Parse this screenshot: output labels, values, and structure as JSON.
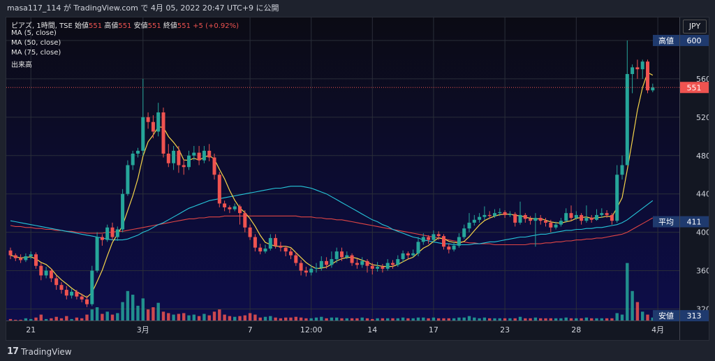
{
  "header": {
    "text": "masa117_114 が TradingView.com で 4月 05, 2022 20:47 UTC+9 に公開"
  },
  "legend": {
    "symbol": "ピアズ, 1時間, TSE",
    "open_label": "始値",
    "open": "551",
    "high_label": "高値",
    "high": "551",
    "low_label": "安値",
    "low": "551",
    "close_label": "終値",
    "close": "551",
    "change": "+5 (+0.92%)",
    "ma5": "MA (5, close)",
    "ma50": "MA (50, close)",
    "ma75": "MA (75, close)",
    "volume": "出来高"
  },
  "currency": "JPY",
  "footer": {
    "brand": "TradingView",
    "brand_mark": "17"
  },
  "colors": {
    "up": "#26a69a",
    "down": "#ef5350",
    "ma5": "#f5d44a",
    "ma50": "#26c6da",
    "ma75": "#e04545",
    "label_bg": "#1f3a6e",
    "price_line": "#ef5350"
  },
  "chart_data": {
    "type": "candlestick",
    "y_ticks": [
      600,
      560,
      520,
      480,
      440,
      400,
      360,
      320
    ],
    "ylim": [
      308,
      624
    ],
    "x_ticks": [
      {
        "label": "21",
        "idx": 4
      },
      {
        "label": "3月",
        "idx": 26
      },
      {
        "label": "7",
        "idx": 47
      },
      {
        "label": "12:00",
        "idx": 59
      },
      {
        "label": "14",
        "idx": 71
      },
      {
        "label": "17",
        "idx": 83
      },
      {
        "label": "23",
        "idx": 97
      },
      {
        "label": "28",
        "idx": 111
      },
      {
        "label": "4月",
        "idx": 127
      }
    ],
    "price_labels": [
      {
        "text": "高値",
        "value": "600"
      },
      {
        "text": "平均",
        "value": "411"
      },
      {
        "text": "安値",
        "value": "313"
      }
    ],
    "current_price": "551",
    "candles": [
      [
        381,
        376,
        384,
        372
      ],
      [
        376,
        373,
        378,
        370
      ],
      [
        373,
        371,
        377,
        368
      ],
      [
        371,
        375,
        378,
        369
      ],
      [
        375,
        377,
        380,
        372
      ],
      [
        377,
        365,
        379,
        362
      ],
      [
        365,
        355,
        368,
        350
      ],
      [
        355,
        360,
        364,
        352
      ],
      [
        360,
        352,
        362,
        348
      ],
      [
        352,
        345,
        355,
        340
      ],
      [
        345,
        340,
        348,
        336
      ],
      [
        340,
        334,
        344,
        330
      ],
      [
        334,
        338,
        341,
        331
      ],
      [
        338,
        333,
        340,
        330
      ],
      [
        333,
        330,
        336,
        327
      ],
      [
        330,
        325,
        334,
        322
      ],
      [
        325,
        360,
        365,
        323
      ],
      [
        360,
        395,
        400,
        358
      ],
      [
        395,
        392,
        398,
        386
      ],
      [
        392,
        405,
        408,
        390
      ],
      [
        405,
        395,
        410,
        392
      ],
      [
        395,
        403,
        406,
        391
      ],
      [
        403,
        440,
        445,
        400
      ],
      [
        440,
        470,
        475,
        438
      ],
      [
        470,
        482,
        485,
        465
      ],
      [
        482,
        485,
        488,
        478
      ],
      [
        485,
        520,
        560,
        480
      ],
      [
        520,
        515,
        525,
        508
      ],
      [
        515,
        505,
        522,
        498
      ],
      [
        505,
        525,
        535,
        500
      ],
      [
        525,
        482,
        530,
        478
      ],
      [
        482,
        472,
        492,
        468
      ],
      [
        472,
        485,
        490,
        465
      ],
      [
        485,
        470,
        490,
        462
      ],
      [
        470,
        468,
        476,
        460
      ],
      [
        468,
        480,
        485,
        465
      ],
      [
        480,
        483,
        490,
        475
      ],
      [
        483,
        475,
        490,
        470
      ],
      [
        475,
        485,
        490,
        472
      ],
      [
        485,
        478,
        492,
        474
      ],
      [
        478,
        460,
        482,
        455
      ],
      [
        460,
        430,
        463,
        426
      ],
      [
        430,
        426,
        433,
        422
      ],
      [
        426,
        424,
        428,
        420
      ],
      [
        424,
        427,
        430,
        422
      ],
      [
        427,
        420,
        429,
        408
      ],
      [
        420,
        405,
        423,
        400
      ],
      [
        405,
        395,
        408,
        392
      ],
      [
        395,
        384,
        398,
        380
      ],
      [
        384,
        380,
        388,
        377
      ],
      [
        380,
        383,
        387,
        378
      ],
      [
        383,
        394,
        398,
        381
      ],
      [
        394,
        386,
        398,
        383
      ],
      [
        386,
        384,
        390,
        380
      ],
      [
        384,
        380,
        386,
        375
      ],
      [
        380,
        376,
        383,
        372
      ],
      [
        376,
        368,
        379,
        365
      ],
      [
        368,
        360,
        371,
        355
      ],
      [
        360,
        358,
        364,
        354
      ],
      [
        358,
        362,
        366,
        355
      ],
      [
        362,
        363,
        368,
        358
      ],
      [
        363,
        370,
        375,
        360
      ],
      [
        370,
        366,
        374,
        362
      ],
      [
        366,
        372,
        380,
        363
      ],
      [
        372,
        380,
        384,
        368
      ],
      [
        380,
        374,
        384,
        370
      ],
      [
        374,
        376,
        380,
        372
      ],
      [
        376,
        368,
        378,
        365
      ],
      [
        368,
        366,
        372,
        362
      ],
      [
        366,
        370,
        374,
        363
      ],
      [
        370,
        365,
        372,
        358
      ],
      [
        365,
        362,
        368,
        356
      ],
      [
        362,
        364,
        369,
        359
      ],
      [
        364,
        362,
        367,
        358
      ],
      [
        362,
        368,
        372,
        360
      ],
      [
        368,
        366,
        371,
        362
      ],
      [
        366,
        372,
        376,
        364
      ],
      [
        372,
        378,
        381,
        369
      ],
      [
        378,
        376,
        380,
        372
      ],
      [
        376,
        378,
        382,
        374
      ],
      [
        378,
        390,
        395,
        375
      ],
      [
        390,
        395,
        399,
        387
      ],
      [
        395,
        392,
        397,
        388
      ],
      [
        392,
        398,
        402,
        389
      ],
      [
        398,
        396,
        401,
        392
      ],
      [
        396,
        385,
        398,
        382
      ],
      [
        385,
        382,
        388,
        378
      ],
      [
        382,
        386,
        390,
        380
      ],
      [
        386,
        395,
        399,
        384
      ],
      [
        395,
        404,
        408,
        393
      ],
      [
        404,
        410,
        420,
        400
      ],
      [
        410,
        413,
        418,
        407
      ],
      [
        413,
        416,
        420,
        410
      ],
      [
        416,
        418,
        427,
        413
      ],
      [
        418,
        417,
        422,
        414
      ],
      [
        417,
        420,
        424,
        415
      ],
      [
        420,
        421,
        425,
        417
      ],
      [
        421,
        418,
        423,
        415
      ],
      [
        418,
        419,
        422,
        416
      ],
      [
        419,
        410,
        421,
        406
      ],
      [
        410,
        418,
        432,
        408
      ],
      [
        418,
        414,
        420,
        410
      ],
      [
        414,
        412,
        417,
        408
      ],
      [
        412,
        415,
        420,
        385
      ],
      [
        415,
        412,
        418,
        408
      ],
      [
        412,
        410,
        415,
        406
      ],
      [
        410,
        405,
        413,
        400
      ],
      [
        405,
        408,
        411,
        403
      ],
      [
        408,
        412,
        415,
        406
      ],
      [
        412,
        420,
        425,
        410
      ],
      [
        420,
        415,
        428,
        412
      ],
      [
        415,
        418,
        422,
        413
      ],
      [
        418,
        412,
        420,
        408
      ],
      [
        412,
        415,
        428,
        410
      ],
      [
        415,
        413,
        418,
        410
      ],
      [
        413,
        418,
        424,
        412
      ],
      [
        418,
        420,
        425,
        415
      ],
      [
        420,
        418,
        423,
        415
      ],
      [
        418,
        412,
        420,
        408
      ],
      [
        412,
        460,
        470,
        410
      ],
      [
        460,
        470,
        480,
        455
      ],
      [
        470,
        565,
        600,
        525
      ],
      [
        565,
        572,
        575,
        545
      ],
      [
        572,
        570,
        580,
        560
      ],
      [
        570,
        578,
        580,
        560
      ],
      [
        578,
        548,
        580,
        545
      ],
      [
        548,
        551,
        555,
        546
      ]
    ],
    "volume": [
      2,
      1,
      1,
      3,
      2,
      4,
      8,
      2,
      3,
      5,
      3,
      6,
      2,
      4,
      3,
      8,
      15,
      18,
      9,
      12,
      8,
      10,
      25,
      40,
      35,
      20,
      30,
      15,
      18,
      24,
      12,
      10,
      8,
      9,
      10,
      7,
      8,
      6,
      9,
      7,
      12,
      15,
      8,
      6,
      5,
      6,
      7,
      10,
      8,
      4,
      5,
      6,
      4,
      3,
      4,
      4,
      5,
      4,
      3,
      3,
      4,
      5,
      3,
      4,
      4,
      3,
      3,
      3,
      3,
      4,
      3,
      2,
      3,
      3,
      3,
      3,
      3,
      4,
      3,
      3,
      4,
      4,
      3,
      4,
      3,
      3,
      3,
      3,
      4,
      4,
      6,
      4,
      3,
      4,
      3,
      3,
      3,
      3,
      3,
      3,
      5,
      3,
      3,
      4,
      3,
      3,
      3,
      3,
      3,
      4,
      3,
      3,
      3,
      4,
      3,
      3,
      3,
      3,
      3,
      10,
      8,
      78,
      40,
      25,
      12,
      8,
      4
    ],
    "ma50": [
      412,
      411,
      410,
      409,
      408,
      407,
      406,
      405,
      404,
      403,
      402,
      401,
      400,
      399,
      398,
      397,
      396,
      395,
      394,
      393,
      392,
      392,
      392,
      393,
      395,
      397,
      400,
      402,
      405,
      408,
      410,
      413,
      416,
      419,
      422,
      425,
      427,
      429,
      431,
      433,
      434,
      435,
      436,
      437,
      438,
      439,
      440,
      441,
      442,
      443,
      444,
      445,
      446,
      446,
      447,
      448,
      448,
      448,
      447,
      446,
      444,
      442,
      440,
      437,
      434,
      431,
      428,
      425,
      422,
      419,
      416,
      413,
      411,
      408,
      406,
      403,
      401,
      399,
      397,
      395,
      394,
      392,
      391,
      390,
      389,
      388,
      388,
      387,
      387,
      387,
      387,
      388,
      388,
      389,
      390,
      390,
      391,
      392,
      393,
      394,
      395,
      395,
      396,
      397,
      398,
      398,
      399,
      400,
      401,
      402,
      402,
      403,
      403,
      404,
      404,
      405,
      405,
      406,
      407,
      408,
      410,
      413,
      417,
      421,
      425,
      429,
      433
    ],
    "ma75": [
      407,
      406,
      406,
      405,
      405,
      404,
      404,
      403,
      403,
      402,
      402,
      401,
      401,
      400,
      400,
      399,
      399,
      399,
      399,
      400,
      400,
      401,
      401,
      402,
      403,
      404,
      405,
      406,
      407,
      408,
      409,
      410,
      411,
      412,
      413,
      414,
      414,
      415,
      415,
      416,
      416,
      416,
      417,
      417,
      417,
      417,
      417,
      417,
      417,
      417,
      417,
      417,
      417,
      417,
      417,
      417,
      417,
      416,
      416,
      416,
      415,
      415,
      414,
      414,
      413,
      413,
      412,
      411,
      410,
      409,
      408,
      407,
      406,
      405,
      404,
      403,
      402,
      401,
      400,
      399,
      398,
      397,
      396,
      395,
      394,
      393,
      392,
      391,
      390,
      390,
      389,
      389,
      388,
      388,
      388,
      387,
      387,
      387,
      387,
      387,
      387,
      387,
      388,
      388,
      388,
      389,
      389,
      390,
      390,
      391,
      391,
      392,
      392,
      393,
      393,
      394,
      394,
      395,
      396,
      397,
      398,
      400,
      403,
      406,
      409,
      412,
      415
    ]
  }
}
